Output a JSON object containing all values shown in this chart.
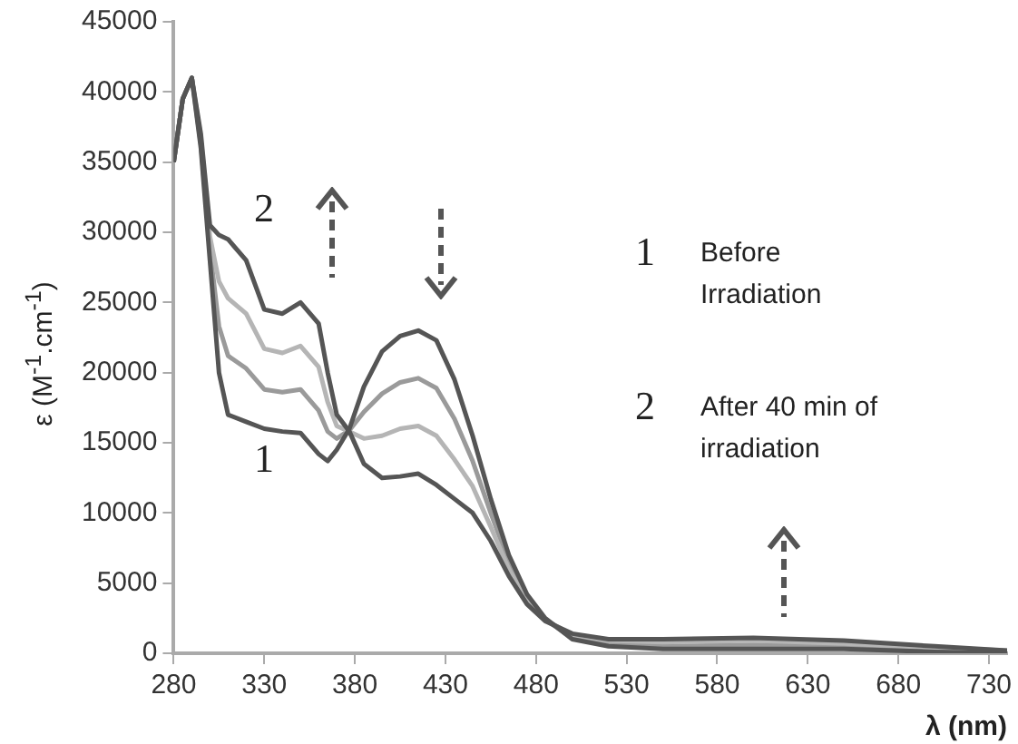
{
  "chart_data": {
    "type": "line",
    "xlabel": "λ (nm)",
    "ylabel": "ε (M$^{-1}$.cm$^{-1}$)",
    "xlim": [
      280,
      740
    ],
    "xticks": [
      280,
      330,
      380,
      430,
      480,
      530,
      580,
      630,
      680,
      730
    ],
    "ylim": [
      0,
      45000
    ],
    "yticks": [
      0,
      5000,
      10000,
      15000,
      20000,
      25000,
      30000,
      35000,
      40000,
      45000
    ],
    "grid": false,
    "marker": "none",
    "line_style": "solid",
    "x": [
      280,
      285,
      290,
      295,
      300,
      305,
      310,
      320,
      330,
      340,
      350,
      360,
      365,
      370,
      377,
      385,
      395,
      405,
      415,
      425,
      435,
      445,
      455,
      465,
      475,
      485,
      500,
      520,
      550,
      600,
      650,
      700,
      740
    ],
    "series": [
      {
        "color": "#9a9a9a",
        "values": [
          35000,
          39500,
          41000,
          36300,
          28800,
          23300,
          21200,
          20300,
          18800,
          18600,
          18800,
          17300,
          15800,
          15300,
          15900,
          17200,
          18500,
          19300,
          19600,
          18900,
          16700,
          13700,
          10000,
          6500,
          4000,
          2400,
          1100,
          700,
          500,
          600,
          500,
          300,
          0
        ]
      },
      {
        "color": "#b5b5b5",
        "values": [
          35000,
          39500,
          41000,
          36700,
          29700,
          26500,
          25300,
          24200,
          21700,
          21400,
          21900,
          20400,
          17900,
          16200,
          15800,
          15300,
          15500,
          16000,
          16200,
          15500,
          13800,
          11900,
          9000,
          6000,
          3700,
          2400,
          1300,
          900,
          800,
          900,
          700,
          400,
          200
        ]
      },
      {
        "color": "#555555",
        "values": [
          35000,
          39500,
          41000,
          36000,
          28000,
          20000,
          17000,
          16500,
          16000,
          15800,
          15700,
          14200,
          13700,
          14500,
          16000,
          19000,
          21500,
          22600,
          23000,
          22300,
          19500,
          15500,
          11000,
          7000,
          4200,
          2500,
          1000,
          500,
          300,
          300,
          300,
          100,
          0
        ]
      },
      {
        "color": "#555555",
        "values": [
          35000,
          39500,
          41000,
          37000,
          30500,
          29800,
          29500,
          28000,
          24500,
          24200,
          25000,
          23500,
          20000,
          17000,
          15800,
          13500,
          12500,
          12600,
          12800,
          12000,
          11000,
          10000,
          8000,
          5500,
          3500,
          2300,
          1400,
          1000,
          1000,
          1100,
          900,
          500,
          200
        ]
      }
    ],
    "annotations": [
      "1",
      "2",
      "1",
      "Before Irradiation",
      "2",
      "After 40 min of irradiation"
    ]
  }
}
